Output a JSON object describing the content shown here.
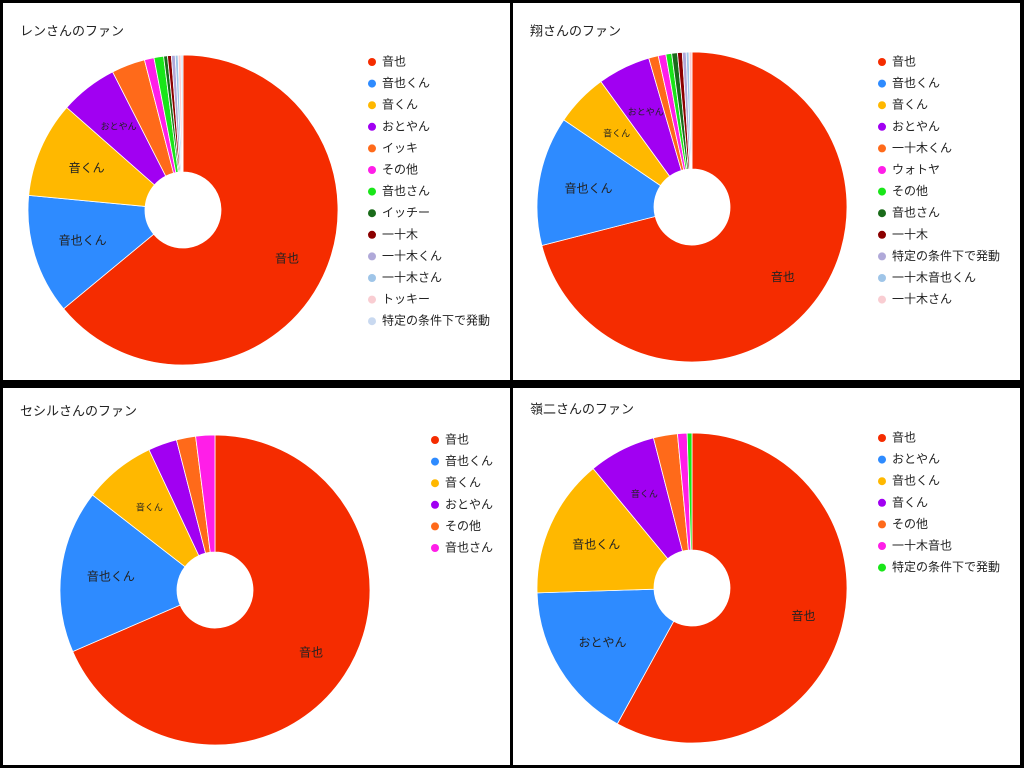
{
  "chart_data": [
    {
      "type": "pie",
      "donut": true,
      "title": "レンさんのファン",
      "categories": [
        "音也",
        "音也くん",
        "音くん",
        "おとやん",
        "イッキ",
        "その他",
        "音也さん",
        "イッチー",
        "一十木",
        "一十木くん",
        "一十木さん",
        "トッキー",
        "特定の条件下で発動"
      ],
      "values": [
        64,
        12.5,
        10,
        6,
        3.5,
        1,
        1,
        0.4,
        0.4,
        0.4,
        0.3,
        0.3,
        0.2
      ],
      "colors": [
        "#f52c00",
        "#2e8bff",
        "#ffb800",
        "#a100f2",
        "#ff6a1a",
        "#ff1ee8",
        "#19e619",
        "#1a6b1a",
        "#8b0000",
        "#b0a9d9",
        "#9fc5e8",
        "#f9cdd2",
        "#c9d9f0"
      ]
    },
    {
      "type": "pie",
      "donut": true,
      "title": "翔さんのファン",
      "categories": [
        "音也",
        "音也くん",
        "音くん",
        "おとやん",
        "一十木くん",
        "ウォトヤ",
        "その他",
        "音也さん",
        "一十木",
        "特定の条件下で発動",
        "一十木音也くん",
        "一十木さん"
      ],
      "values": [
        71,
        13.5,
        5.5,
        5.5,
        1,
        0.8,
        0.6,
        0.6,
        0.5,
        0.4,
        0.3,
        0.3
      ],
      "colors": [
        "#f52c00",
        "#2e8bff",
        "#ffb800",
        "#a100f2",
        "#ff6a1a",
        "#ff1ee8",
        "#19e619",
        "#1a6b1a",
        "#8b0000",
        "#b0a9d9",
        "#9fc5e8",
        "#f9cdd2"
      ]
    },
    {
      "type": "pie",
      "donut": true,
      "title": "セシルさんのファン",
      "categories": [
        "音也",
        "音也くん",
        "音くん",
        "おとやん",
        "その他",
        "音也さん"
      ],
      "values": [
        68.5,
        17,
        7.5,
        3,
        2,
        2
      ],
      "colors": [
        "#f52c00",
        "#2e8bff",
        "#ffb800",
        "#a100f2",
        "#ff6a1a",
        "#ff1ee8"
      ]
    },
    {
      "type": "pie",
      "donut": true,
      "title": "嶺二さんのファン",
      "categories": [
        "音也",
        "おとやん",
        "音也くん",
        "音くん",
        "その他",
        "一十木音也",
        "特定の条件下で発動"
      ],
      "values": [
        58,
        16.5,
        14.5,
        7,
        2.5,
        1,
        0.5
      ],
      "colors": [
        "#f52c00",
        "#2e8bff",
        "#ffb800",
        "#a100f2",
        "#ff6a1a",
        "#ff1ee8",
        "#19e619"
      ]
    }
  ]
}
